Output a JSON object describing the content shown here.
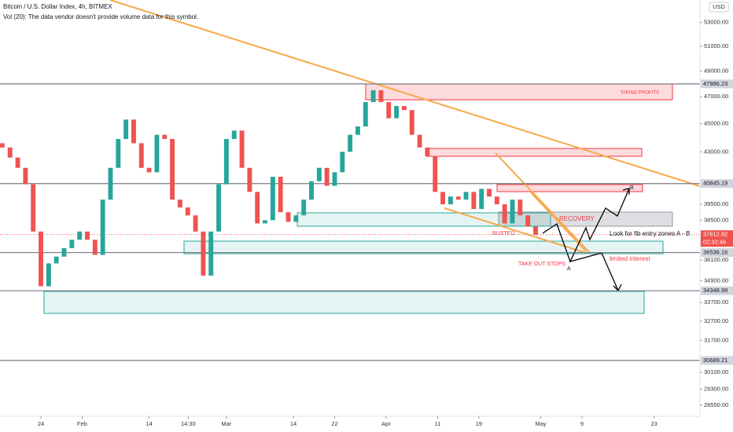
{
  "chart_data": {
    "type": "candlestick",
    "title": "Bitcoin / U.S. Dollar Index, 4h, BITMEX",
    "subtitle": "Vol (20): The data vendor doesn't provide volume data for this symbol.",
    "currency": "USD",
    "log_scale": true,
    "up_color": "#26a69a",
    "down_color": "#ef5350",
    "x": [
      16.5,
      18,
      19.5,
      21,
      22.5,
      24,
      25.5,
      27,
      28.5,
      30,
      31.5,
      33,
      34.5,
      36,
      37.5,
      39,
      40.5,
      42,
      43.5,
      45,
      46.5,
      48,
      49.5,
      51,
      52.5,
      54,
      55.5,
      57,
      58.5,
      60,
      61.5,
      63,
      64.5,
      66,
      67.5,
      69,
      70.5,
      72,
      73.5,
      75,
      76.5,
      78,
      79.5,
      81,
      82.5,
      84,
      85.5,
      87,
      88.5,
      90,
      91.5,
      93,
      94.5,
      96,
      97.5,
      99,
      100.5,
      102,
      103.5,
      105,
      106.5,
      108,
      109.5,
      111,
      112.5,
      114,
      115.5,
      117,
      118.5,
      120
    ],
    "open": [
      43600,
      43300,
      42600,
      41900,
      40800,
      37800,
      34600,
      35900,
      36300,
      36800,
      37300,
      37800,
      37300,
      36400,
      39800,
      41900,
      43900,
      45300,
      43600,
      41900,
      41600,
      44200,
      43900,
      39800,
      39300,
      38800,
      37800,
      35200,
      37800,
      40800,
      43900,
      44500,
      41900,
      40300,
      38300,
      38500,
      41300,
      39000,
      38400,
      38800,
      39800,
      41000,
      41900,
      40700,
      41600,
      43000,
      44200,
      44800,
      46600,
      47500,
      46600,
      45400,
      46300,
      46000,
      44200,
      43300,
      42700,
      40300,
      39500,
      40000,
      39800,
      40300,
      39200,
      40500,
      40000,
      39500,
      38300,
      39800,
      38800,
      38100
    ],
    "close": [
      43300,
      42600,
      41900,
      40800,
      37800,
      34600,
      35900,
      36300,
      36800,
      37300,
      37800,
      37300,
      36400,
      39800,
      41900,
      43900,
      45300,
      43600,
      41900,
      41600,
      44200,
      43900,
      39800,
      39300,
      38800,
      37800,
      35200,
      37800,
      40800,
      43900,
      44500,
      41900,
      40300,
      38300,
      38500,
      41300,
      39000,
      38400,
      38800,
      39800,
      41000,
      41900,
      40700,
      41600,
      43000,
      44200,
      44800,
      46600,
      47500,
      46600,
      45400,
      46300,
      46000,
      44200,
      43300,
      42700,
      40300,
      39500,
      40000,
      39800,
      40300,
      39200,
      40500,
      40000,
      39500,
      38300,
      39800,
      38800,
      38100,
      37600
    ],
    "xlim": [
      16.06,
      151.9
    ],
    "ylim": [
      28040,
      54960
    ],
    "xticks": [
      {
        "value": 24,
        "label": "24"
      },
      {
        "value": 32,
        "label": "Feb"
      },
      {
        "value": 45,
        "label": "14"
      },
      {
        "value": 52.6,
        "label": "14:30"
      },
      {
        "value": 60,
        "label": "Mar"
      },
      {
        "value": 73,
        "label": "14"
      },
      {
        "value": 81,
        "label": "22"
      },
      {
        "value": 91,
        "label": "Apr"
      },
      {
        "value": 101,
        "label": "11"
      },
      {
        "value": 109,
        "label": "19"
      },
      {
        "value": 121,
        "label": "May"
      },
      {
        "value": 129,
        "label": "9"
      },
      {
        "value": 143,
        "label": "23"
      }
    ],
    "yticks": [
      {
        "value": 53000,
        "label": "53000.00"
      },
      {
        "value": 51000,
        "label": "51000.00"
      },
      {
        "value": 49000,
        "label": "49000.00"
      },
      {
        "value": 47000,
        "label": "47000.00"
      },
      {
        "value": 45000,
        "label": "45000.00"
      },
      {
        "value": 43000,
        "label": "43000.00"
      },
      {
        "value": 39500,
        "label": "39500.00"
      },
      {
        "value": 38500,
        "label": "38500.00"
      },
      {
        "value": 36100,
        "label": "36100.00"
      },
      {
        "value": 34900,
        "label": "34900.00"
      },
      {
        "value": 33700,
        "label": "33700.00"
      },
      {
        "value": 32700,
        "label": "32700.00"
      },
      {
        "value": 31700,
        "label": "31700.00"
      },
      {
        "value": 30100,
        "label": "30100.00"
      },
      {
        "value": 29300,
        "label": "29300.00"
      },
      {
        "value": 28550,
        "label": "28550.00"
      }
    ],
    "levels": [
      47986.23,
      40845.19,
      36536.16,
      34348.99,
      30689.21
    ],
    "last_price": {
      "value": 37612.82,
      "countdown": "02:32:46"
    },
    "annotations": {
      "taking_profits": "TAKING PROFITS",
      "recovery": "RECOVERY",
      "busted": "BUSTED",
      "fib": "Look for fib entry zones A - B",
      "take_out_stops": "TAKE OUT STOPS",
      "a": "A",
      "b": "B",
      "limited_interest": "limited interest"
    }
  }
}
